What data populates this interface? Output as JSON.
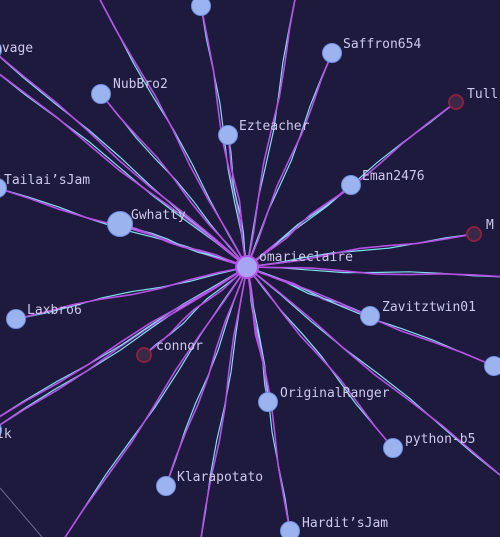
{
  "graph": {
    "center": {
      "id": "omarieclaire",
      "label": "omarieclaire"
    },
    "colors": {
      "background": "#1e1a3d",
      "edge_primary": "#b84fe6",
      "edge_secondary": "#79e3ef",
      "node_fill": "#9bb3ef",
      "node_stroke": "#6f8fe0",
      "node_inactive_fill": "#3a2848",
      "node_inactive_stroke": "#8a2040",
      "center_fill": "#a8a4f4",
      "label": "#cfc8ea"
    },
    "nodes": [
      {
        "id": "n-top",
        "label": "",
        "style": "normal",
        "size": "small"
      },
      {
        "id": "savage",
        "label": "avage",
        "style": "offscreen",
        "size": "small"
      },
      {
        "id": "saffron654",
        "label": "Saffron654",
        "style": "normal",
        "size": "small"
      },
      {
        "id": "nubbro2",
        "label": "NubBro2",
        "style": "normal",
        "size": "small"
      },
      {
        "id": "tull",
        "label": "Tull",
        "style": "inactive",
        "size": "small"
      },
      {
        "id": "ezteacher",
        "label": "Ezteacher",
        "style": "normal",
        "size": "small"
      },
      {
        "id": "tailais-jam",
        "label": "Tailai’sJam",
        "style": "normal",
        "size": "small"
      },
      {
        "id": "eman2476",
        "label": "Eman2476",
        "style": "normal",
        "size": "small"
      },
      {
        "id": "gwhatty",
        "label": "Gwhatty",
        "style": "normal",
        "size": "large"
      },
      {
        "id": "m",
        "label": "M",
        "style": "inactive",
        "size": "small"
      },
      {
        "id": "laxbro6",
        "label": "Laxbro6",
        "style": "normal",
        "size": "small"
      },
      {
        "id": "zavitztwin01",
        "label": "Zavitztwin01",
        "style": "normal",
        "size": "small"
      },
      {
        "id": "n-right",
        "label": "",
        "style": "normal",
        "size": "small"
      },
      {
        "id": "connor",
        "label": "connor",
        "style": "inactive",
        "size": "small"
      },
      {
        "id": "originalranger",
        "label": "OriginalRanger",
        "style": "normal",
        "size": "small"
      },
      {
        "id": "ik",
        "label": "ik",
        "style": "offscreen",
        "size": "small"
      },
      {
        "id": "python-b5",
        "label": "python-b5",
        "style": "normal",
        "size": "small"
      },
      {
        "id": "klarapotato",
        "label": "Klarapotato",
        "style": "normal",
        "size": "small"
      },
      {
        "id": "hardits-jam",
        "label": "Hardit’sJam",
        "style": "normal",
        "size": "small"
      }
    ]
  }
}
